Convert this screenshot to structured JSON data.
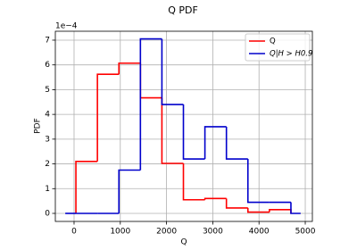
{
  "chart_data": {
    "type": "histogram",
    "title": "Q PDF",
    "xlabel": "Q",
    "ylabel": "PDF",
    "y_offset_label": "1e−4",
    "xlim": [
      -405,
      5154
    ],
    "ylim": [
      -0.325,
      7.36
    ],
    "xticks": [
      0,
      1000,
      2000,
      3000,
      4000,
      5000
    ],
    "yticks": [
      0,
      1,
      2,
      3,
      4,
      5,
      6,
      7
    ],
    "grid": true,
    "legend": "upper right",
    "series": [
      {
        "name": "Q",
        "color": "#ff0000",
        "bins": [
          40,
          505,
          970,
          1435,
          1900,
          2365,
          2830,
          3295,
          3760,
          4225,
          4690
        ],
        "values": [
          2.1,
          5.62,
          6.07,
          4.67,
          2.02,
          0.55,
          0.6,
          0.22,
          0.05,
          0.15
        ]
      },
      {
        "name": "Q|H > H0.9",
        "color": "#0000cc",
        "bins": [
          -190,
          40,
          505,
          970,
          1435,
          1900,
          2365,
          2830,
          3295,
          3760,
          4225,
          4690,
          4900
        ],
        "values": [
          0,
          0,
          0,
          1.75,
          7.05,
          4.4,
          2.2,
          3.5,
          2.2,
          0.45,
          0.45,
          0
        ]
      }
    ]
  }
}
